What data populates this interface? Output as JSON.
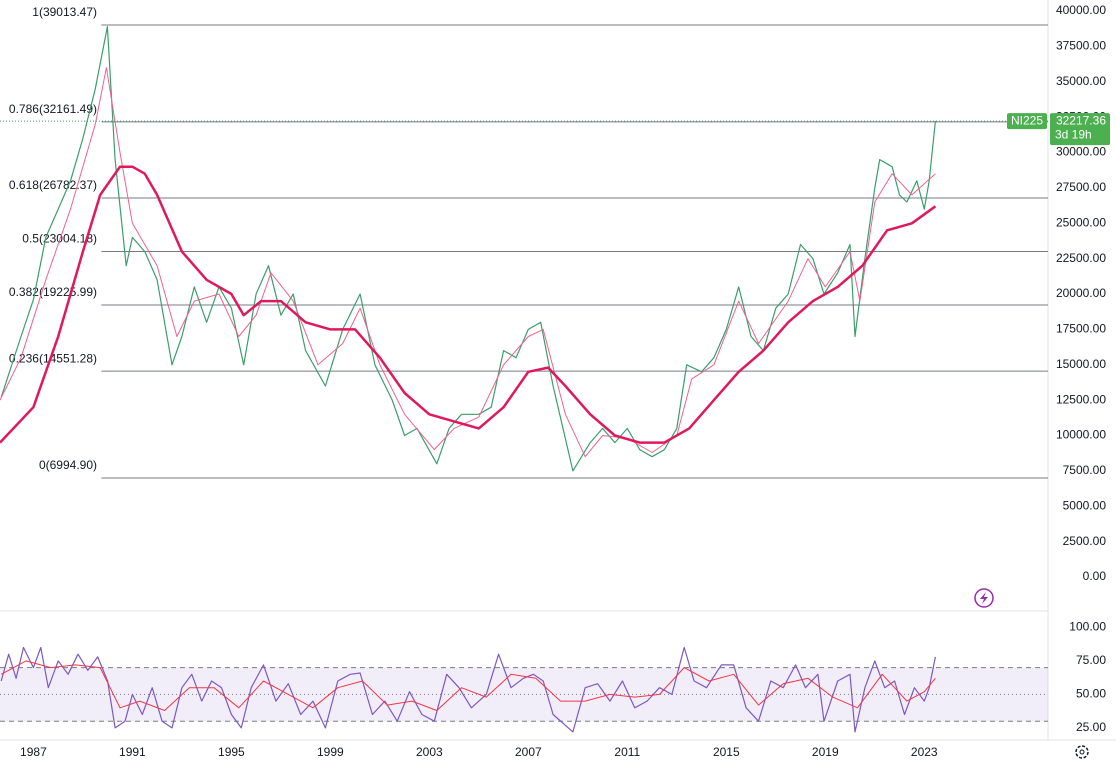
{
  "chart_data": [
    {
      "type": "line",
      "symbol": "NI225",
      "countdown": "3d 19h",
      "last_price": 32217.36,
      "xlim": [
        1985.65,
        2028.0
      ],
      "ylim": [
        0,
        40000
      ],
      "yticks": [
        {
          "value": 0,
          "label": "0.00"
        },
        {
          "value": 2500,
          "label": "2500.00"
        },
        {
          "value": 5000,
          "label": "5000.00"
        },
        {
          "value": 7500,
          "label": "7500.00"
        },
        {
          "value": 10000,
          "label": "10000.00"
        },
        {
          "value": 12500,
          "label": "12500.00"
        },
        {
          "value": 15000,
          "label": "15000.00"
        },
        {
          "value": 17500,
          "label": "17500.00"
        },
        {
          "value": 20000,
          "label": "20000.00"
        },
        {
          "value": 22500,
          "label": "22500.00"
        },
        {
          "value": 25000,
          "label": "25000.00"
        },
        {
          "value": 27500,
          "label": "27500.00"
        },
        {
          "value": 30000,
          "label": "30000.00"
        },
        {
          "value": 32500,
          "label": "32500.00"
        },
        {
          "value": 35000,
          "label": "35000.00"
        },
        {
          "value": 37500,
          "label": "37500.00"
        },
        {
          "value": 40000,
          "label": "40000.00"
        }
      ],
      "xticks": [
        1987,
        1991,
        1995,
        1999,
        2003,
        2007,
        2011,
        2015,
        2019,
        2023
      ],
      "levels": [
        {
          "value": 39013.47,
          "label": "1(39013.47)"
        },
        {
          "value": 32161.49,
          "label": "0.786(32161.49)"
        },
        {
          "value": 26782.37,
          "label": "0.618(26782.37)"
        },
        {
          "value": 23004.18,
          "label": "0.5(23004.18)"
        },
        {
          "value": 19225.99,
          "label": "0.382(19225.99)"
        },
        {
          "value": 14551.28,
          "label": "0.236(14551.28)"
        },
        {
          "value": 6994.9,
          "label": "0(6994.90)"
        }
      ],
      "levels_start": 1989.75,
      "series": [
        {
          "color": "#3b9e6a",
          "width": 1.2,
          "x": [
            1985.7,
            1986.5,
            1987.0,
            1987.5,
            1988.0,
            1988.5,
            1989.0,
            1989.5,
            1989.99,
            1990.3,
            1990.75,
            1991.0,
            1991.5,
            1992.0,
            1992.6,
            1993.0,
            1993.5,
            1994.0,
            1994.5,
            1995.0,
            1995.5,
            1996.0,
            1996.5,
            1997.0,
            1997.5,
            1998.0,
            1998.8,
            1999.5,
            2000.2,
            2000.8,
            2001.5,
            2002.0,
            2002.5,
            2003.3,
            2003.8,
            2004.3,
            2005.0,
            2005.5,
            2006.0,
            2006.5,
            2007.0,
            2007.5,
            2008.0,
            2008.8,
            2009.5,
            2010.0,
            2010.5,
            2011.0,
            2011.5,
            2012.0,
            2012.5,
            2013.0,
            2013.4,
            2014.0,
            2014.5,
            2015.0,
            2015.5,
            2016.0,
            2016.5,
            2017.0,
            2017.5,
            2018.0,
            2018.5,
            2018.95,
            2019.5,
            2020.0,
            2020.2,
            2020.6,
            2021.0,
            2021.2,
            2021.7,
            2022.0,
            2022.3,
            2022.7,
            2023.0,
            2023.2,
            2023.45
          ],
          "values": [
            12700,
            17000,
            19600,
            24000,
            26000,
            28000,
            31000,
            34500,
            38900,
            29500,
            22000,
            24000,
            23000,
            21000,
            15000,
            17000,
            20500,
            18000,
            20500,
            19000,
            15000,
            20000,
            22000,
            18500,
            20000,
            16000,
            13500,
            17500,
            20000,
            15000,
            12500,
            10000,
            10500,
            8000,
            10500,
            11500,
            11500,
            12000,
            16000,
            15500,
            17500,
            18000,
            13500,
            7500,
            9500,
            10500,
            9500,
            10500,
            9000,
            8500,
            9000,
            10500,
            15000,
            14500,
            15500,
            17500,
            20500,
            17000,
            16000,
            19000,
            20000,
            23500,
            22500,
            20000,
            21500,
            23500,
            17000,
            22500,
            27500,
            29500,
            29000,
            27000,
            26500,
            28000,
            26000,
            28000,
            32217
          ]
        },
        {
          "color": "#f06292",
          "width": 1,
          "x": [
            1985.65,
            1986.5,
            1987.5,
            1988.5,
            1989.5,
            1989.95,
            1990.5,
            1991.0,
            1992.0,
            1992.8,
            1993.5,
            1994.5,
            1995.3,
            1996.0,
            1996.6,
            1997.5,
            1998.5,
            1999.5,
            2000.2,
            2001.0,
            2002.0,
            2003.2,
            2004.0,
            2005.0,
            2006.0,
            2007.0,
            2007.6,
            2008.5,
            2009.3,
            2010.0,
            2011.0,
            2012.0,
            2013.0,
            2013.6,
            2014.5,
            2015.5,
            2016.3,
            2017.5,
            2018.3,
            2019.0,
            2020.0,
            2020.4,
            2021.0,
            2021.7,
            2022.5,
            2023.45
          ],
          "values": [
            12500,
            15500,
            21000,
            26000,
            32000,
            36000,
            30000,
            25000,
            22000,
            17000,
            19500,
            20000,
            17000,
            18500,
            21500,
            19500,
            15000,
            16500,
            19000,
            15000,
            11500,
            9000,
            10500,
            11300,
            15000,
            17000,
            17500,
            11500,
            8500,
            10000,
            9800,
            8800,
            10000,
            14000,
            15000,
            19500,
            16500,
            19500,
            22500,
            20500,
            23000,
            19500,
            26500,
            28500,
            27000,
            28500
          ]
        },
        {
          "color": "#e0195c",
          "width": 2.5,
          "x": [
            1985.65,
            1987.0,
            1988.0,
            1989.0,
            1989.7,
            1990.5,
            1991.0,
            1991.5,
            1992.0,
            1993.0,
            1994.0,
            1995.0,
            1995.5,
            1996.2,
            1997.0,
            1998.0,
            1999.0,
            2000.0,
            2001.0,
            2002.0,
            2003.0,
            2004.0,
            2005.0,
            2006.0,
            2007.0,
            2007.8,
            2008.5,
            2009.5,
            2010.5,
            2011.5,
            2012.5,
            2013.5,
            2014.5,
            2015.5,
            2016.5,
            2017.5,
            2018.5,
            2019.5,
            2020.5,
            2021.5,
            2022.5,
            2023.45
          ],
          "values": [
            9500,
            12000,
            17000,
            23000,
            27000,
            29000,
            29000,
            28500,
            27000,
            23000,
            21000,
            20000,
            18500,
            19500,
            19500,
            18000,
            17500,
            17500,
            15500,
            13000,
            11500,
            11000,
            10500,
            12000,
            14500,
            14800,
            13500,
            11500,
            10000,
            9500,
            9500,
            10500,
            12500,
            14500,
            16000,
            18000,
            19500,
            20500,
            22000,
            24500,
            25000,
            26200
          ]
        }
      ]
    },
    {
      "type": "line",
      "xlim": [
        1985.65,
        2028.0
      ],
      "ylim": [
        10,
        110
      ],
      "yticks": [
        {
          "value": 100,
          "label": "100.00"
        },
        {
          "value": 75,
          "label": "75.00"
        },
        {
          "value": 50,
          "label": "50.00"
        },
        {
          "value": 25,
          "label": "25.00"
        }
      ],
      "band": [
        30,
        70
      ],
      "series": [
        {
          "color": "#7e57c2",
          "width": 1.2,
          "x": [
            1985.7,
            1986.0,
            1986.3,
            1986.6,
            1987.0,
            1987.3,
            1987.6,
            1988.0,
            1988.4,
            1988.8,
            1989.2,
            1989.6,
            1990.0,
            1990.3,
            1990.7,
            1991.0,
            1991.4,
            1991.8,
            1992.2,
            1992.6,
            1993.0,
            1993.4,
            1993.8,
            1994.2,
            1994.6,
            1995.0,
            1995.4,
            1995.8,
            1996.3,
            1996.8,
            1997.3,
            1997.8,
            1998.3,
            1998.8,
            1999.3,
            1999.8,
            2000.2,
            2000.7,
            2001.2,
            2001.7,
            2002.2,
            2002.7,
            2003.2,
            2003.7,
            2004.2,
            2004.7,
            2005.3,
            2005.8,
            2006.3,
            2006.8,
            2007.2,
            2007.6,
            2008.0,
            2008.8,
            2009.3,
            2009.8,
            2010.3,
            2010.8,
            2011.3,
            2011.8,
            2012.3,
            2012.8,
            2013.3,
            2013.7,
            2014.2,
            2014.8,
            2015.3,
            2015.8,
            2016.3,
            2016.8,
            2017.3,
            2017.8,
            2018.2,
            2018.7,
            2018.95,
            2019.5,
            2020.0,
            2020.2,
            2020.6,
            2021.0,
            2021.4,
            2021.8,
            2022.2,
            2022.6,
            2023.0,
            2023.2,
            2023.45
          ],
          "values": [
            60,
            80,
            62,
            85,
            70,
            85,
            55,
            75,
            65,
            80,
            68,
            78,
            60,
            25,
            30,
            50,
            35,
            55,
            30,
            25,
            55,
            65,
            45,
            60,
            55,
            35,
            25,
            55,
            72,
            45,
            58,
            35,
            45,
            25,
            60,
            65,
            66,
            35,
            45,
            30,
            52,
            35,
            30,
            65,
            55,
            40,
            50,
            80,
            55,
            62,
            65,
            60,
            35,
            22,
            55,
            58,
            45,
            60,
            40,
            45,
            55,
            50,
            85,
            60,
            55,
            72,
            72,
            40,
            30,
            60,
            55,
            72,
            55,
            65,
            30,
            60,
            65,
            22,
            55,
            75,
            55,
            60,
            35,
            55,
            45,
            55,
            78
          ]
        },
        {
          "color": "#f23645",
          "width": 1,
          "x": [
            1985.7,
            1986.7,
            1987.7,
            1988.7,
            1989.7,
            1990.5,
            1991.3,
            1992.3,
            1993.3,
            1994.3,
            1995.3,
            1996.3,
            1997.3,
            1998.3,
            1999.3,
            2000.3,
            2001.3,
            2002.3,
            2003.3,
            2004.3,
            2005.3,
            2006.3,
            2007.3,
            2008.3,
            2009.3,
            2010.3,
            2011.3,
            2012.3,
            2013.3,
            2014.3,
            2015.3,
            2016.3,
            2017.3,
            2018.3,
            2019.3,
            2020.3,
            2021.3,
            2022.3,
            2023.0,
            2023.45
          ],
          "values": [
            65,
            75,
            70,
            72,
            70,
            40,
            45,
            38,
            55,
            55,
            40,
            60,
            50,
            40,
            55,
            60,
            42,
            45,
            38,
            55,
            48,
            65,
            62,
            45,
            45,
            50,
            48,
            50,
            70,
            60,
            65,
            42,
            58,
            62,
            48,
            40,
            65,
            45,
            52,
            62
          ]
        }
      ]
    }
  ]
}
